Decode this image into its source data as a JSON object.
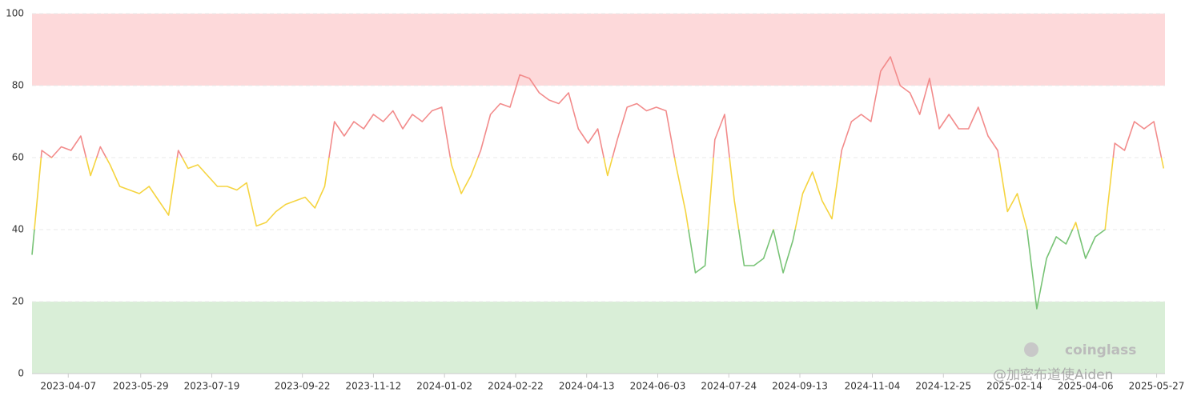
{
  "chart_data": {
    "type": "line",
    "x": [
      "2023-03-12",
      "2023-03-19",
      "2023-03-26",
      "2023-04-02",
      "2023-04-09",
      "2023-04-16",
      "2023-04-23",
      "2023-04-30",
      "2023-05-07",
      "2023-05-14",
      "2023-05-21",
      "2023-05-28",
      "2023-06-04",
      "2023-06-11",
      "2023-06-18",
      "2023-06-25",
      "2023-07-02",
      "2023-07-09",
      "2023-07-16",
      "2023-07-23",
      "2023-07-30",
      "2023-08-06",
      "2023-08-13",
      "2023-08-20",
      "2023-08-27",
      "2023-09-03",
      "2023-09-10",
      "2023-09-17",
      "2023-09-24",
      "2023-10-01",
      "2023-10-08",
      "2023-10-15",
      "2023-10-22",
      "2023-10-29",
      "2023-11-05",
      "2023-11-12",
      "2023-11-19",
      "2023-11-26",
      "2023-12-03",
      "2023-12-10",
      "2023-12-17",
      "2023-12-24",
      "2023-12-31",
      "2024-01-07",
      "2024-01-14",
      "2024-01-21",
      "2024-01-28",
      "2024-02-04",
      "2024-02-11",
      "2024-02-18",
      "2024-02-25",
      "2024-03-03",
      "2024-03-10",
      "2024-03-17",
      "2024-03-24",
      "2024-03-31",
      "2024-04-07",
      "2024-04-14",
      "2024-04-21",
      "2024-04-28",
      "2024-05-05",
      "2024-05-12",
      "2024-05-19",
      "2024-05-26",
      "2024-06-02",
      "2024-06-09",
      "2024-06-16",
      "2024-06-23",
      "2024-06-30",
      "2024-07-07",
      "2024-07-14",
      "2024-07-21",
      "2024-07-28",
      "2024-08-04",
      "2024-08-11",
      "2024-08-18",
      "2024-08-25",
      "2024-09-01",
      "2024-09-08",
      "2024-09-15",
      "2024-09-22",
      "2024-09-29",
      "2024-10-06",
      "2024-10-13",
      "2024-10-20",
      "2024-10-27",
      "2024-11-03",
      "2024-11-10",
      "2024-11-17",
      "2024-11-24",
      "2024-12-01",
      "2024-12-08",
      "2024-12-15",
      "2024-12-22",
      "2024-12-29",
      "2025-01-05",
      "2025-01-12",
      "2025-01-19",
      "2025-01-26",
      "2025-02-02",
      "2025-02-09",
      "2025-02-16",
      "2025-02-23",
      "2025-03-02",
      "2025-03-09",
      "2025-03-16",
      "2025-03-23",
      "2025-03-30",
      "2025-04-06",
      "2025-04-13",
      "2025-04-20",
      "2025-04-27",
      "2025-05-04",
      "2025-05-11",
      "2025-05-18",
      "2025-05-25",
      "2025-06-01"
    ],
    "values": [
      33,
      62,
      60,
      63,
      62,
      66,
      55,
      63,
      58,
      52,
      51,
      50,
      52,
      48,
      44,
      62,
      57,
      58,
      55,
      52,
      52,
      51,
      53,
      41,
      42,
      45,
      47,
      48,
      49,
      46,
      52,
      70,
      66,
      70,
      68,
      72,
      70,
      73,
      68,
      72,
      70,
      73,
      74,
      58,
      50,
      55,
      62,
      72,
      75,
      74,
      83,
      82,
      78,
      76,
      75,
      78,
      68,
      64,
      68,
      55,
      65,
      74,
      75,
      73,
      74,
      73,
      58,
      45,
      28,
      30,
      65,
      72,
      48,
      30,
      30,
      32,
      40,
      28,
      37,
      50,
      56,
      48,
      43,
      62,
      70,
      72,
      70,
      84,
      88,
      80,
      78,
      72,
      82,
      68,
      72,
      68,
      68,
      74,
      66,
      62,
      45,
      50,
      40,
      18,
      32,
      38,
      36,
      42,
      32,
      38,
      40,
      64,
      62,
      70,
      68,
      70,
      57
    ],
    "xlim": [
      "2023-03-12",
      "2025-06-02"
    ],
    "xticks": [
      "2023-04-07",
      "2023-05-29",
      "2023-07-19",
      "2023-09-22",
      "2023-11-12",
      "2024-01-02",
      "2024-02-22",
      "2024-04-13",
      "2024-06-03",
      "2024-07-24",
      "2024-09-13",
      "2024-11-04",
      "2024-12-25",
      "2025-02-14",
      "2025-04-06",
      "2025-05-27"
    ],
    "ylim": [
      0,
      100
    ],
    "yticks": [
      0,
      20,
      40,
      60,
      80,
      100
    ],
    "grid": true,
    "bands": [
      {
        "from": 80,
        "to": 100,
        "color": "#fdd9da"
      },
      {
        "from": 0,
        "to": 20,
        "color": "#d9eed7"
      }
    ],
    "line_zones": [
      {
        "from": 60,
        "to": 100,
        "color": "#f28b8b"
      },
      {
        "from": 40,
        "to": 60,
        "color": "#f5d440"
      },
      {
        "from": 0,
        "to": 40,
        "color": "#78c376"
      }
    ],
    "watermark": "coinglass",
    "credit": "@加密布道使Aiden"
  }
}
